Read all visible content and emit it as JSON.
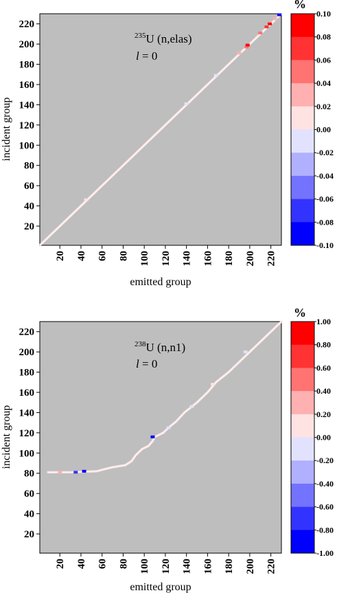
{
  "chart_data": [
    {
      "type": "heatmap",
      "id": "top",
      "title_superscript": "235",
      "title_main": "U (n,elas)",
      "l_symbol": "l",
      "l_value": " = 0",
      "xlabel": "emitted group",
      "ylabel": "incident group",
      "xlim": [
        1,
        230
      ],
      "ylim": [
        1,
        230
      ],
      "xticks": [
        20,
        40,
        60,
        80,
        100,
        120,
        140,
        160,
        180,
        200,
        220
      ],
      "yticks": [
        20,
        40,
        60,
        80,
        100,
        120,
        140,
        160,
        180,
        200,
        220
      ],
      "background_color": "#bebebe",
      "colorbar_unit": "%",
      "colorbar_labels": [
        "0.10",
        "0.08",
        "0.06",
        "0.04",
        "0.02",
        "0.00",
        "-0.02",
        "-0.04",
        "-0.06",
        "-0.08",
        "-0.10"
      ],
      "colorbar_colors": [
        "#ff0000",
        "#ff3333",
        "#ff7373",
        "#ffb0b0",
        "#ffe2e2",
        "#e2e2ff",
        "#b0b0ff",
        "#7373ff",
        "#3333ff",
        "#0000ff"
      ],
      "diagonal": [
        [
          1,
          1
        ],
        [
          230,
          230
        ]
      ],
      "highlights": [
        {
          "x": 45,
          "y": 46,
          "value": 0.01
        },
        {
          "x": 140,
          "y": 141,
          "value": -0.01
        },
        {
          "x": 168,
          "y": 169,
          "value": -0.01
        },
        {
          "x": 190,
          "y": 191,
          "value": 0.02
        },
        {
          "x": 197,
          "y": 197,
          "value": 0.06
        },
        {
          "x": 198,
          "y": 199,
          "value": 0.09
        },
        {
          "x": 210,
          "y": 211,
          "value": 0.05
        },
        {
          "x": 216,
          "y": 217,
          "value": 0.07
        },
        {
          "x": 219,
          "y": 220,
          "value": 0.09
        },
        {
          "x": 224,
          "y": 225,
          "value": 0.03
        },
        {
          "x": 228,
          "y": 229,
          "value": -0.09
        }
      ]
    },
    {
      "type": "heatmap",
      "id": "bottom",
      "title_superscript": "238",
      "title_main": "U (n,n1)",
      "l_symbol": "l",
      "l_value": " = 0",
      "xlabel": "emitted group",
      "ylabel": "incident group",
      "xlim": [
        1,
        230
      ],
      "ylim": [
        1,
        230
      ],
      "xticks": [
        20,
        40,
        60,
        80,
        100,
        120,
        140,
        160,
        180,
        200,
        220
      ],
      "yticks": [
        20,
        40,
        60,
        80,
        100,
        120,
        140,
        160,
        180,
        200,
        220
      ],
      "background_color": "#bebebe",
      "colorbar_unit": "%",
      "colorbar_labels": [
        "1.00",
        "0.80",
        "0.60",
        "0.40",
        "0.20",
        "0.00",
        "-0.20",
        "-0.40",
        "-0.60",
        "-0.80",
        "-1.00"
      ],
      "colorbar_colors": [
        "#ff0000",
        "#ff3333",
        "#ff7373",
        "#ffb0b0",
        "#ffe2e2",
        "#e2e2ff",
        "#b0b0ff",
        "#7373ff",
        "#3333ff",
        "#0000ff"
      ],
      "curve": [
        [
          8,
          81
        ],
        [
          30,
          81
        ],
        [
          55,
          82
        ],
        [
          62,
          84
        ],
        [
          70,
          86
        ],
        [
          82,
          88
        ],
        [
          88,
          92
        ],
        [
          92,
          98
        ],
        [
          98,
          104
        ],
        [
          104,
          107
        ],
        [
          108,
          112
        ],
        [
          110,
          116
        ],
        [
          118,
          120
        ],
        [
          124,
          126
        ],
        [
          130,
          131
        ],
        [
          138,
          140
        ],
        [
          150,
          150
        ],
        [
          160,
          160
        ],
        [
          168,
          170
        ],
        [
          180,
          180
        ],
        [
          190,
          190
        ],
        [
          200,
          200
        ],
        [
          210,
          210
        ],
        [
          230,
          230
        ]
      ],
      "highlights": [
        {
          "x": 20,
          "y": 81,
          "value": 0.3
        },
        {
          "x": 35,
          "y": 81,
          "value": -0.6
        },
        {
          "x": 43,
          "y": 82,
          "value": -0.8
        },
        {
          "x": 108,
          "y": 116,
          "value": -0.9
        },
        {
          "x": 123,
          "y": 125,
          "value": -0.1
        },
        {
          "x": 145,
          "y": 146,
          "value": -0.1
        },
        {
          "x": 165,
          "y": 168,
          "value": 0.1
        },
        {
          "x": 196,
          "y": 200,
          "value": -0.1
        }
      ]
    }
  ]
}
